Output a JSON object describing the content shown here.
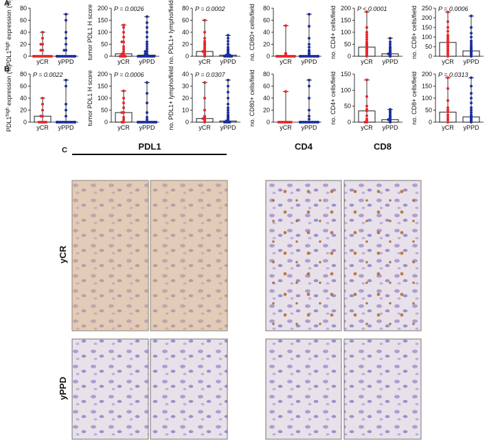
{
  "panel_labels": [
    "A",
    "B",
    "C"
  ],
  "chart_data": [
    {
      "type": "dotbar",
      "row": "A",
      "ylabel_parts": [
        "PDL1",
        "high",
        " expression (%)"
      ],
      "ylim": [
        0,
        80
      ],
      "yticks": [
        0,
        20,
        40,
        60,
        80
      ],
      "categories": [
        "yCR",
        "yPPD"
      ],
      "series": [
        {
          "color": "#e8262a",
          "median": 0,
          "min": 0,
          "max": 40,
          "points": [
            0,
            0,
            0,
            0,
            0,
            0,
            0,
            0,
            0,
            0,
            0,
            0,
            10,
            10,
            20,
            20,
            30,
            40
          ]
        },
        {
          "color": "#1c2f9e",
          "median": 0,
          "min": 0,
          "max": 70,
          "points": [
            0,
            0,
            0,
            0,
            0,
            0,
            0,
            0,
            0,
            0,
            0,
            0,
            0,
            0,
            10,
            10,
            20,
            30,
            40,
            60,
            70
          ]
        }
      ]
    },
    {
      "type": "dotbar",
      "row": "A",
      "ylabel_parts": [
        "tumor PDL1 H score"
      ],
      "annotation": "P = 0.0026",
      "ylim": [
        0,
        200
      ],
      "yticks": [
        0,
        50,
        100,
        150,
        200
      ],
      "categories": [
        "yCR",
        "yPPD"
      ],
      "series": [
        {
          "color": "#e8262a",
          "median": 10,
          "min": 0,
          "max": 130,
          "points": [
            0,
            0,
            0,
            0,
            5,
            5,
            10,
            10,
            20,
            30,
            40,
            60,
            60,
            80,
            100,
            120,
            130
          ]
        },
        {
          "color": "#1c2f9e",
          "median": 5,
          "min": 0,
          "max": 165,
          "points": [
            0,
            0,
            0,
            0,
            0,
            0,
            0,
            0,
            0,
            0,
            5,
            5,
            10,
            10,
            20,
            20,
            30,
            40,
            50,
            60,
            80,
            100,
            120,
            140,
            165
          ]
        }
      ]
    },
    {
      "type": "dotbar",
      "row": "A",
      "ylabel_parts": [
        "no. PDL1+ lympho/field"
      ],
      "annotation": "P = 0.0002",
      "ylim": [
        0,
        80
      ],
      "yticks": [
        0,
        20,
        40,
        60,
        80
      ],
      "categories": [
        "yCR",
        "yPPD"
      ],
      "series": [
        {
          "color": "#e8262a",
          "median": 8,
          "min": 0,
          "max": 60,
          "points": [
            0,
            2,
            3,
            5,
            6,
            8,
            8,
            9,
            10,
            12,
            15,
            18,
            20,
            22,
            25,
            30,
            40,
            60
          ]
        },
        {
          "color": "#1c2f9e",
          "median": 2,
          "min": 0,
          "max": 35,
          "points": [
            0,
            0,
            0,
            0,
            0,
            1,
            1,
            2,
            2,
            2,
            3,
            4,
            5,
            6,
            8,
            10,
            12,
            15,
            20,
            25,
            30,
            35
          ]
        }
      ]
    },
    {
      "type": "dotbar",
      "row": "A",
      "ylabel_parts": [
        "no. CD80+ cells/field"
      ],
      "ylim": [
        0,
        80
      ],
      "yticks": [
        0,
        20,
        40,
        60,
        80
      ],
      "categories": [
        "yCR",
        "yPPD"
      ],
      "series": [
        {
          "color": "#e8262a",
          "median": 0,
          "min": 0,
          "max": 51,
          "points": [
            0,
            0,
            0,
            0,
            0,
            0,
            0,
            0,
            0,
            0,
            0,
            0,
            2,
            3,
            5,
            51
          ]
        },
        {
          "color": "#1c2f9e",
          "median": 0,
          "min": 0,
          "max": 70,
          "points": [
            0,
            0,
            0,
            0,
            0,
            0,
            0,
            0,
            0,
            0,
            0,
            0,
            0,
            0,
            0,
            1,
            2,
            3,
            5,
            8,
            10,
            15,
            20,
            30,
            50,
            70
          ]
        }
      ]
    },
    {
      "type": "dotbar",
      "row": "A",
      "ylabel_parts": [
        "no. CD4+ cells/field"
      ],
      "annotation": "P < 0.0001",
      "ylim": [
        0,
        200
      ],
      "yticks": [
        0,
        50,
        100,
        150,
        200
      ],
      "categories": [
        "yCR",
        "yPPD"
      ],
      "series": [
        {
          "color": "#e8262a",
          "median": 38,
          "min": 0,
          "max": 185,
          "points": [
            0,
            5,
            10,
            15,
            20,
            25,
            30,
            35,
            38,
            40,
            42,
            45,
            50,
            55,
            60,
            70,
            80,
            90,
            100,
            120,
            185
          ]
        },
        {
          "color": "#1c2f9e",
          "median": 10,
          "min": 0,
          "max": 75,
          "points": [
            0,
            1,
            2,
            3,
            4,
            5,
            6,
            8,
            10,
            10,
            12,
            14,
            16,
            18,
            20,
            22,
            25,
            30,
            35,
            40,
            50,
            60,
            75
          ]
        }
      ]
    },
    {
      "type": "dotbar",
      "row": "A",
      "ylabel_parts": [
        "no. CD8+ cells/field"
      ],
      "annotation": "P = 0.0006",
      "ylim": [
        0,
        250
      ],
      "yticks": [
        0,
        50,
        100,
        150,
        200,
        250
      ],
      "categories": [
        "yCR",
        "yPPD"
      ],
      "series": [
        {
          "color": "#e8262a",
          "median": 72,
          "min": 0,
          "max": 230,
          "points": [
            0,
            10,
            20,
            30,
            40,
            50,
            60,
            70,
            72,
            80,
            90,
            100,
            110,
            130,
            150,
            180,
            230
          ]
        },
        {
          "color": "#1c2f9e",
          "median": 28,
          "min": 0,
          "max": 210,
          "points": [
            0,
            2,
            5,
            8,
            10,
            12,
            15,
            18,
            20,
            22,
            25,
            28,
            30,
            35,
            40,
            45,
            50,
            60,
            70,
            80,
            100,
            120,
            150,
            210
          ]
        }
      ]
    },
    {
      "type": "dotbar",
      "row": "B",
      "ylabel_parts": [
        "PDL1",
        "high",
        " expression (%)"
      ],
      "annotation": "P = 0.0022",
      "ylim": [
        0,
        80
      ],
      "yticks": [
        0,
        20,
        40,
        60,
        80
      ],
      "categories": [
        "yCR",
        "yPPD"
      ],
      "series": [
        {
          "color": "#e8262a",
          "median": 10,
          "min": 0,
          "max": 40,
          "points": [
            0,
            0,
            0,
            0,
            0,
            10,
            10,
            20,
            30,
            40
          ]
        },
        {
          "color": "#1c2f9e",
          "median": 0,
          "min": 0,
          "max": 70,
          "points": [
            0,
            0,
            0,
            0,
            0,
            0,
            0,
            0,
            0,
            0,
            0,
            0,
            0,
            0,
            0,
            10,
            20,
            30,
            60,
            70
          ]
        }
      ]
    },
    {
      "type": "dotbar",
      "row": "B",
      "ylabel_parts": [
        "tumor PDL1 H score"
      ],
      "annotation": "P = 0.0006",
      "ylim": [
        0,
        200
      ],
      "yticks": [
        0,
        50,
        100,
        150,
        200
      ],
      "categories": [
        "yCR",
        "yPPD"
      ],
      "series": [
        {
          "color": "#e8262a",
          "median": 40,
          "min": 0,
          "max": 130,
          "points": [
            0,
            0,
            10,
            20,
            40,
            40,
            60,
            80,
            100,
            130
          ]
        },
        {
          "color": "#1c2f9e",
          "median": 0,
          "min": 0,
          "max": 165,
          "points": [
            0,
            0,
            0,
            0,
            0,
            0,
            0,
            0,
            0,
            0,
            0,
            0,
            0,
            0,
            10,
            20,
            40,
            80,
            120,
            165
          ]
        }
      ]
    },
    {
      "type": "dotbar",
      "row": "B",
      "ylabel_parts": [
        "no. PDL1+ lympho/field"
      ],
      "annotation": "P = 0.0307",
      "ylim": [
        0,
        40
      ],
      "yticks": [
        0,
        10,
        20,
        30,
        40
      ],
      "categories": [
        "yCR",
        "yPPD"
      ],
      "series": [
        {
          "color": "#e8262a",
          "median": 3,
          "min": 0,
          "max": 33,
          "points": [
            0,
            1,
            2,
            3,
            3,
            4,
            5,
            10,
            20,
            33
          ]
        },
        {
          "color": "#1c2f9e",
          "median": 1,
          "min": 0,
          "max": 35,
          "points": [
            0,
            0,
            0,
            0,
            1,
            1,
            2,
            3,
            4,
            5,
            6,
            8,
            10,
            12,
            15,
            20,
            25,
            30,
            35
          ]
        }
      ]
    },
    {
      "type": "dotbar",
      "row": "B",
      "ylabel_parts": [
        "no. CD80+ cells/field"
      ],
      "ylim": [
        0,
        80
      ],
      "yticks": [
        0,
        20,
        40,
        60,
        80
      ],
      "categories": [
        "yCR",
        "yPPD"
      ],
      "series": [
        {
          "color": "#e8262a",
          "median": 0,
          "min": 0,
          "max": 51,
          "points": [
            0,
            0,
            0,
            0,
            0,
            0,
            0,
            0,
            51
          ]
        },
        {
          "color": "#1c2f9e",
          "median": 0,
          "min": 0,
          "max": 70,
          "points": [
            0,
            0,
            0,
            0,
            0,
            0,
            0,
            0,
            0,
            0,
            0,
            0,
            0,
            0,
            5,
            10,
            20,
            40,
            60,
            70
          ]
        }
      ]
    },
    {
      "type": "dotbar",
      "row": "B",
      "ylabel_parts": [
        "no. CD4+ cells/field"
      ],
      "ylim": [
        0,
        150
      ],
      "yticks": [
        0,
        50,
        100,
        150
      ],
      "categories": [
        "yCR",
        "yPPD"
      ],
      "series": [
        {
          "color": "#e8262a",
          "median": 35,
          "min": 0,
          "max": 132,
          "points": [
            0,
            0,
            5,
            10,
            20,
            35,
            40,
            50,
            80,
            132
          ]
        },
        {
          "color": "#1c2f9e",
          "median": 8,
          "min": 0,
          "max": 40,
          "points": [
            0,
            1,
            2,
            3,
            5,
            6,
            8,
            8,
            10,
            12,
            15,
            18,
            20,
            25,
            30,
            35,
            40
          ]
        }
      ]
    },
    {
      "type": "dotbar",
      "row": "B",
      "ylabel_parts": [
        "no. CD8+ cells/field"
      ],
      "annotation": "P = 0.0313",
      "ylim": [
        0,
        200
      ],
      "yticks": [
        0,
        50,
        100,
        150,
        200
      ],
      "categories": [
        "yCR",
        "yPPD"
      ],
      "series": [
        {
          "color": "#e8262a",
          "median": 42,
          "min": 0,
          "max": 185,
          "points": [
            0,
            10,
            20,
            30,
            42,
            50,
            60,
            90,
            140,
            185
          ]
        },
        {
          "color": "#1c2f9e",
          "median": 22,
          "min": 0,
          "max": 185,
          "points": [
            0,
            2,
            5,
            8,
            10,
            15,
            20,
            22,
            25,
            30,
            40,
            50,
            60,
            80,
            100,
            120,
            150,
            185
          ]
        }
      ]
    }
  ],
  "images": {
    "columns": [
      "PDL1",
      "CD4",
      "CD8"
    ],
    "rows": [
      "yCR",
      "yPPD"
    ]
  }
}
